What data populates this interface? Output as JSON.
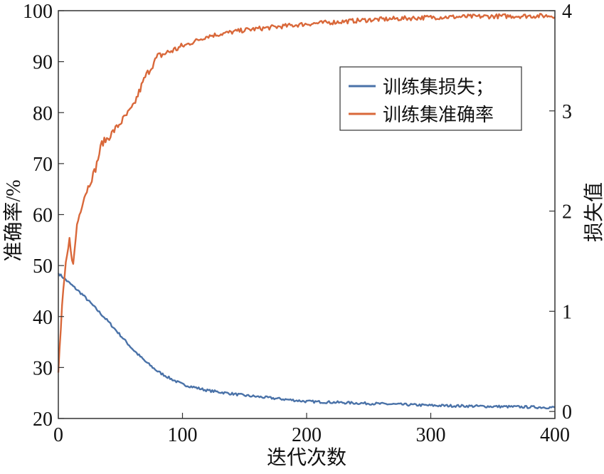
{
  "chart_data": {
    "type": "line",
    "xlabel": "迭代次数",
    "ylabel": "准确率/%",
    "y2label": "损失值",
    "xlim": [
      0,
      400
    ],
    "ylim": [
      20,
      100
    ],
    "y2lim": [
      -0.07,
      4
    ],
    "xticks": [
      0,
      100,
      200,
      300,
      400
    ],
    "yticks": [
      20,
      30,
      40,
      50,
      60,
      70,
      80,
      90,
      100
    ],
    "y2ticks": [
      0,
      1,
      2,
      3,
      4
    ],
    "grid": false,
    "legend_position": "top-right",
    "series": [
      {
        "name": "训练集损失；",
        "axis": "right",
        "color": "#4a72a8",
        "x": [
          0,
          10,
          20,
          30,
          40,
          50,
          60,
          70,
          80,
          90,
          100,
          120,
          150,
          200,
          250,
          300,
          350,
          400
        ],
        "values": [
          1.38,
          1.27,
          1.16,
          1.03,
          0.9,
          0.76,
          0.62,
          0.5,
          0.4,
          0.33,
          0.27,
          0.21,
          0.16,
          0.1,
          0.08,
          0.06,
          0.05,
          0.04
        ]
      },
      {
        "name": "训练集准确率",
        "axis": "left",
        "color": "#d9683a",
        "x": [
          0,
          3,
          6,
          9,
          12,
          15,
          20,
          25,
          30,
          35,
          40,
          50,
          60,
          70,
          80,
          90,
          100,
          120,
          150,
          200,
          250,
          300,
          350,
          400
        ],
        "values": [
          29,
          42,
          50,
          55,
          50,
          58,
          63,
          66,
          69,
          74,
          75,
          78,
          81,
          87,
          91,
          92,
          93,
          95,
          96.2,
          97.4,
          98.2,
          98.7,
          98.9,
          99
        ]
      }
    ]
  }
}
